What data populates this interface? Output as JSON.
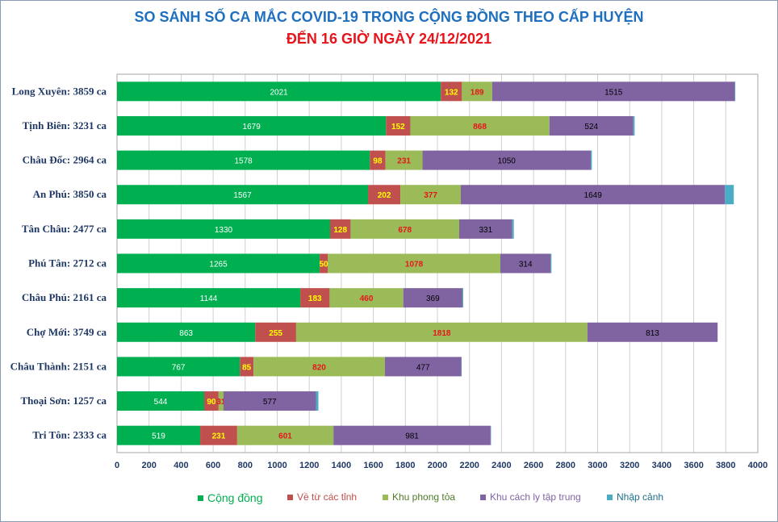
{
  "chart_data": {
    "type": "bar",
    "orientation": "horizontal",
    "stacked": true,
    "title": "SO SÁNH SỐ CA MẮC COVID-19 TRONG CỘNG ĐỒNG THEO CẤP HUYỆN",
    "subtitle": "ĐẾN 16 GIỜ NGÀY 24/12/2021",
    "categories": [
      "Long Xuyên: 3859 ca",
      "Tịnh Biên: 3231 ca",
      "Châu Đốc: 2964 ca",
      "An Phú: 3850 ca",
      "Tân Châu: 2477 ca",
      "Phú Tân: 2712 ca",
      "Châu Phú: 2161 ca",
      "Chợ Mới: 3749 ca",
      "Châu Thành: 2151 ca",
      "Thoại  Sơn: 1257 ca",
      "Tri Tôn:  2333 ca"
    ],
    "series": [
      {
        "name": "Cộng đồng",
        "color": "#00b050",
        "label_color": "#ffffff",
        "values": [
          2021,
          1679,
          1578,
          1567,
          1330,
          1265,
          1144,
          863,
          767,
          544,
          519
        ],
        "labels": [
          "2021",
          "1679",
          "1578",
          "1567",
          "1330",
          "1265",
          "1144",
          "863",
          "767",
          "544",
          "519"
        ]
      },
      {
        "name": "Về từ các tỉnh",
        "color": "#c0504d",
        "label_color": "#ffff00",
        "values": [
          132,
          152,
          98,
          202,
          128,
          50,
          183,
          255,
          85,
          90,
          231
        ],
        "labels": [
          "132",
          "152",
          "98",
          "202",
          "128",
          "50",
          "183",
          "255",
          "85",
          "90",
          "231"
        ]
      },
      {
        "name": "Khu phong tỏa",
        "color": "#9bbb59",
        "label_color": "#e8141b",
        "values": [
          189,
          868,
          231,
          377,
          678,
          1078,
          460,
          1818,
          820,
          31,
          601
        ],
        "labels": [
          "189",
          "868",
          "231",
          "377",
          "678",
          "1078",
          "460",
          "1818",
          "820",
          "31",
          "601"
        ]
      },
      {
        "name": "Khu cách  ly tập trung",
        "color": "#8064a2",
        "label_color": "#000000",
        "values": [
          1515,
          524,
          1050,
          1649,
          331,
          314,
          369,
          813,
          477,
          577,
          981
        ],
        "labels": [
          "1515",
          "524",
          "1050",
          "1649",
          "331",
          "314",
          "369",
          "813",
          "477",
          "577",
          "981"
        ]
      },
      {
        "name": "Nhập cảnh",
        "color": "#4bacc6",
        "label_color": "#000000",
        "values": [
          2,
          8,
          7,
          55,
          10,
          5,
          5,
          0,
          2,
          15,
          1
        ],
        "labels": [
          "",
          "",
          "",
          "",
          "",
          "",
          "",
          "",
          "",
          "",
          ""
        ]
      }
    ],
    "xlim": [
      0,
      4000
    ],
    "xticks": [
      "0",
      "200",
      "400",
      "600",
      "800",
      "1000",
      "1200",
      "1400",
      "1600",
      "1800",
      "2000",
      "2200",
      "2400",
      "2600",
      "2800",
      "3000",
      "3200",
      "3400",
      "3600",
      "3800",
      "4000"
    ],
    "grid": true,
    "legend": "bottom"
  }
}
